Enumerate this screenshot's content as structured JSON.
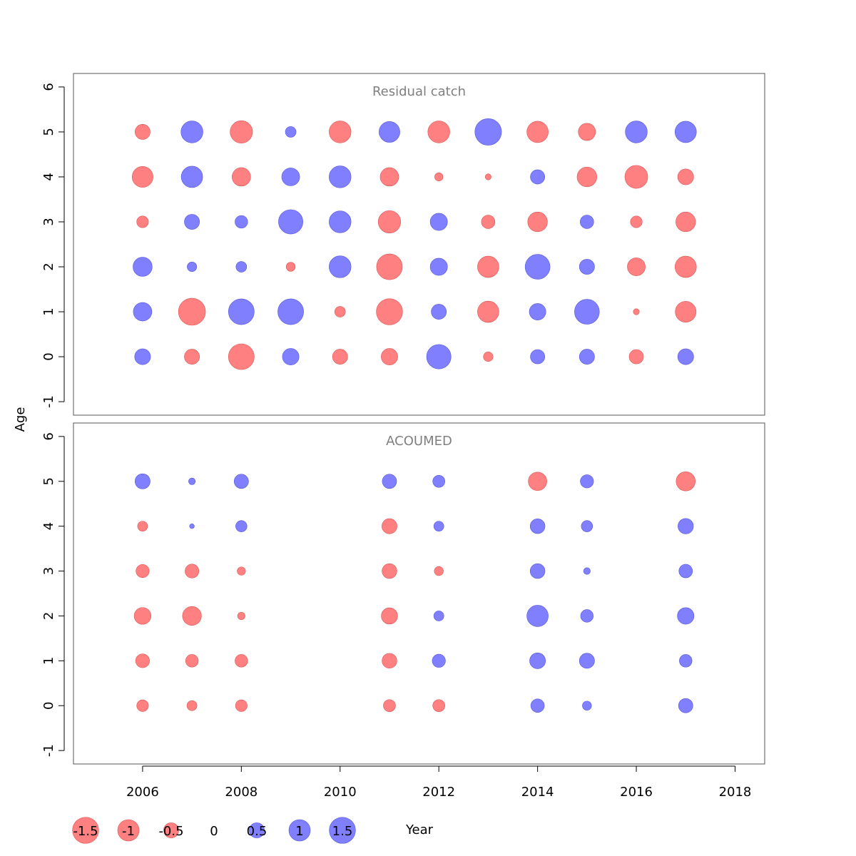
{
  "chart_data": {
    "type": "scatter",
    "subtype": "bubble",
    "xlabel": "Year",
    "ylabel": "Age",
    "xlim": [
      2004.6,
      2018.6
    ],
    "xticks": [
      2006,
      2008,
      2010,
      2012,
      2014,
      2016,
      2018
    ],
    "ylim": [
      -1.3,
      6.3
    ],
    "yticks": [
      -1,
      0,
      1,
      2,
      3,
      4,
      5,
      6
    ],
    "grid": false,
    "colors": {
      "positive": "#8080ff",
      "negative": "#ff8080",
      "positive_edge": "#5555dd",
      "negative_edge": "#dd5555"
    },
    "panels": [
      {
        "title": "Residual catch",
        "years": [
          2006,
          2007,
          2008,
          2009,
          2010,
          2011,
          2012,
          2013,
          2014,
          2015,
          2016,
          2017
        ],
        "ages": [
          0,
          1,
          2,
          3,
          4,
          5
        ],
        "residuals": [
          [
            0.55,
            -0.5,
            -1.45,
            0.6,
            -0.5,
            -0.6,
            1.3,
            -0.2,
            0.45,
            0.5,
            -0.45,
            0.55
          ],
          [
            0.75,
            -1.6,
            1.45,
            1.45,
            -0.25,
            -1.5,
            0.5,
            -1.0,
            0.6,
            1.35,
            -0.08,
            -0.95
          ],
          [
            0.8,
            0.2,
            0.25,
            -0.18,
            1.05,
            -1.45,
            0.65,
            -1.0,
            1.35,
            0.5,
            -0.7,
            -1.0
          ],
          [
            -0.3,
            0.5,
            0.35,
            1.3,
            1.05,
            -1.1,
            0.65,
            -0.4,
            -0.85,
            0.4,
            -0.3,
            -0.85
          ],
          [
            -0.95,
            1.0,
            -0.75,
            0.7,
            1.05,
            -0.75,
            -0.15,
            -0.08,
            0.45,
            -0.85,
            -1.15,
            -0.55
          ],
          [
            -0.5,
            1.05,
            -1.1,
            0.25,
            -1.05,
            0.95,
            -1.05,
            1.55,
            -1.0,
            -0.65,
            1.05,
            1.0
          ]
        ]
      },
      {
        "title": "ACOUMED",
        "years": [
          2006,
          2007,
          2008,
          2011,
          2012,
          2014,
          2015,
          2017
        ],
        "ages": [
          0,
          1,
          2,
          3,
          4,
          5
        ],
        "residuals": [
          [
            -0.3,
            -0.22,
            -0.3,
            -0.32,
            -0.32,
            0.4,
            0.18,
            0.45
          ],
          [
            -0.42,
            -0.35,
            -0.35,
            -0.48,
            0.38,
            0.55,
            0.5,
            0.35
          ],
          [
            -0.62,
            -0.78,
            -0.12,
            -0.58,
            0.22,
            1.0,
            0.35,
            0.6
          ],
          [
            -0.38,
            -0.42,
            -0.15,
            -0.48,
            -0.18,
            0.48,
            0.1,
            0.4
          ],
          [
            -0.22,
            0.05,
            0.28,
            -0.5,
            0.22,
            0.48,
            0.28,
            0.52
          ],
          [
            0.5,
            0.1,
            0.45,
            0.45,
            0.32,
            -0.75,
            0.38,
            -0.8
          ]
        ]
      }
    ],
    "legend": {
      "position": "bottom-left",
      "values": [
        -1.5,
        -1,
        -0.5,
        0,
        0.5,
        1,
        1.5
      ],
      "labels": [
        "-1.5",
        "-1",
        "-0.5",
        "0",
        "0.5",
        "1",
        "1.5"
      ]
    }
  }
}
